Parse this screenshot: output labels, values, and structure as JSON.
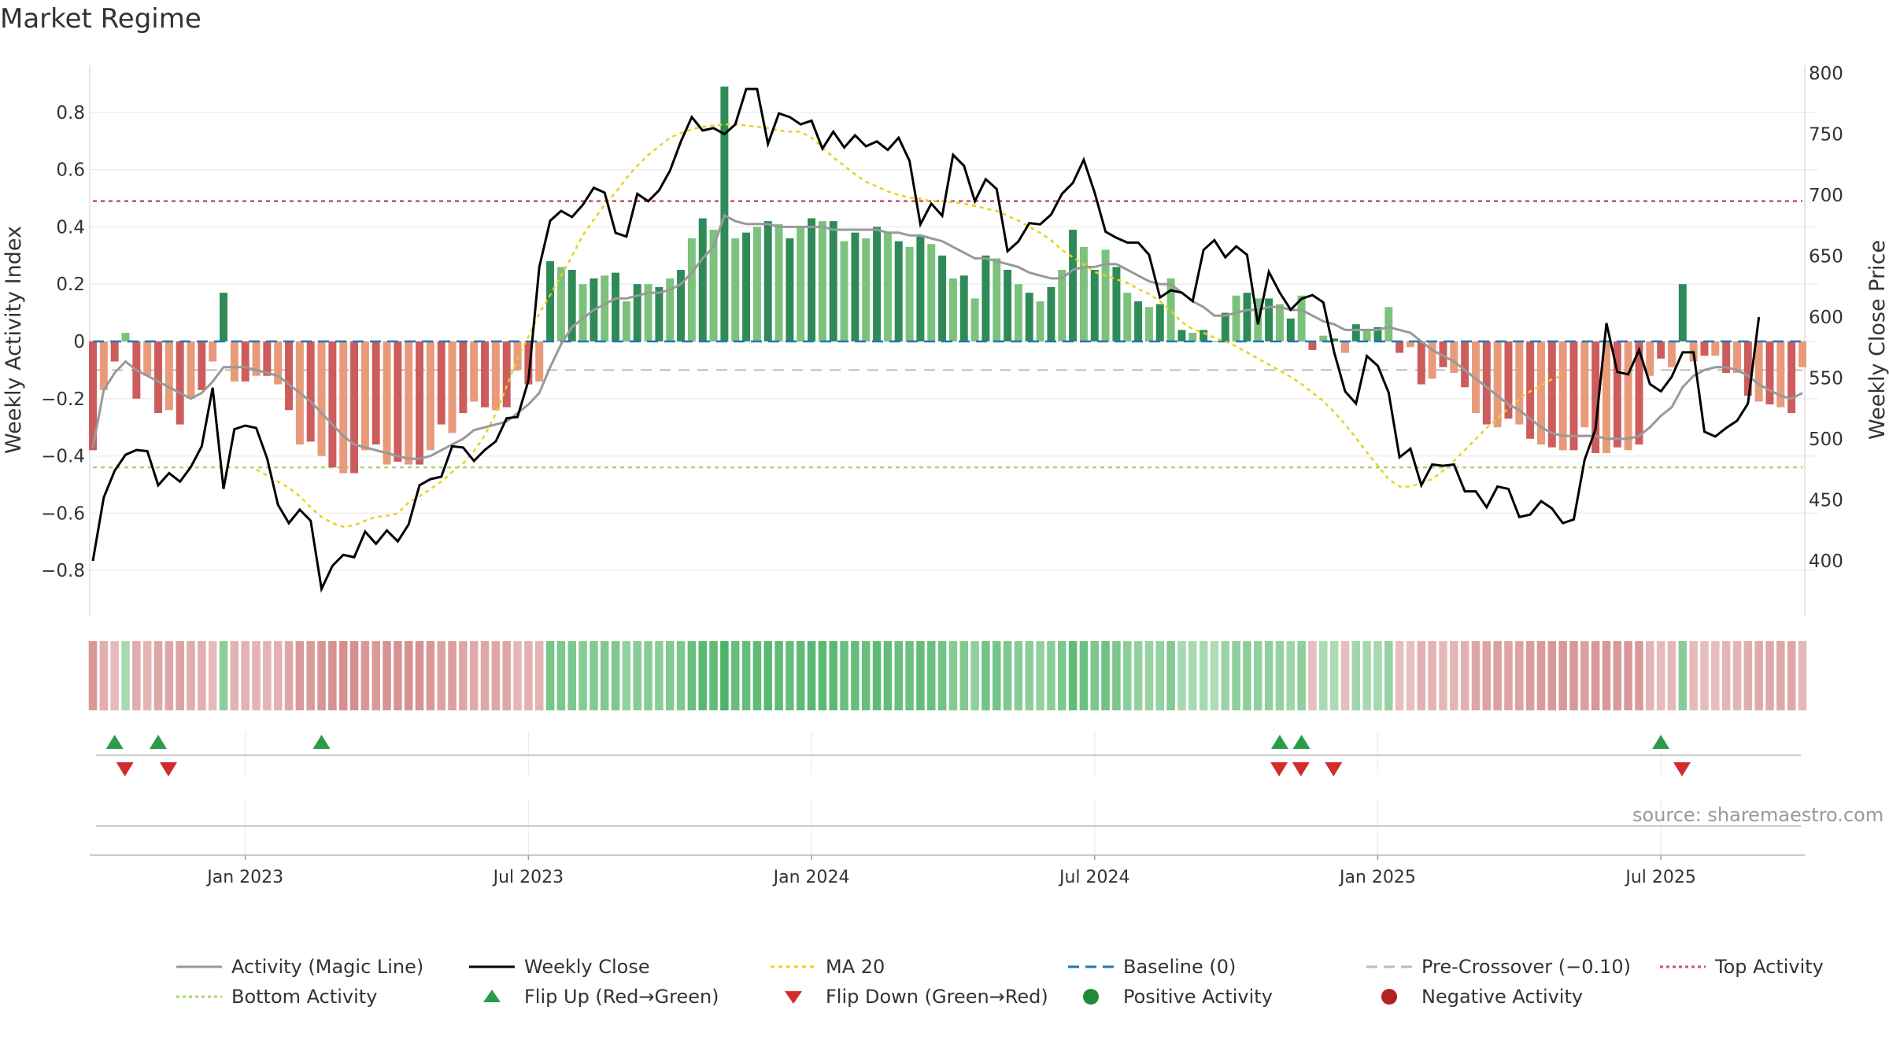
{
  "title": "Market Regime",
  "source": "source: sharemaestro.com",
  "legend": [
    {
      "label": "Activity (Magic Line)",
      "kind": "line",
      "color": "#999999",
      "dash": ""
    },
    {
      "label": "Weekly Close",
      "kind": "line",
      "color": "#000000",
      "dash": ""
    },
    {
      "label": "MA 20",
      "kind": "line",
      "color": "#e8d31a",
      "dash": "5,5"
    },
    {
      "label": "Baseline (0)",
      "kind": "line",
      "color": "#1f77b4",
      "dash": "14,8"
    },
    {
      "label": "Pre-Crossover (−0.10)",
      "kind": "line",
      "color": "#bbbbbb",
      "dash": "14,8"
    },
    {
      "label": "Top Activity",
      "kind": "line",
      "color": "#c8526a",
      "dash": "4,4"
    },
    {
      "label": "Bottom Activity",
      "kind": "line",
      "color": "#a5d86e",
      "dash": "4,4"
    },
    {
      "label": "Flip Up (Red→Green)",
      "kind": "tri-up",
      "color": "#2a9d4a"
    },
    {
      "label": "Flip Down (Green→Red)",
      "kind": "tri-down",
      "color": "#d22b2b"
    },
    {
      "label": "Positive Activity",
      "kind": "dot",
      "color": "#1e8a3a"
    },
    {
      "label": "Negative Activity",
      "kind": "dot",
      "color": "#b22222"
    }
  ],
  "chart_data": {
    "type": "bar",
    "title": "Market Regime",
    "ylabel_left": "Weekly Activity Index",
    "ylabel_right": "Weekly Close Price",
    "ylim_left": [
      -0.96,
      0.96
    ],
    "ylim_right": [
      350,
      800
    ],
    "yticks_left": [
      -0.8,
      -0.6,
      -0.4,
      -0.2,
      0,
      0.2,
      0.4,
      0.6,
      0.8
    ],
    "yticks_right": [
      400,
      450,
      500,
      550,
      600,
      650,
      700,
      750,
      800
    ],
    "xticks": [
      {
        "label": "Jan 2023",
        "week": 14
      },
      {
        "label": "Jul 2023",
        "week": 40
      },
      {
        "label": "Jan 2024",
        "week": 66
      },
      {
        "label": "Jul 2024",
        "week": 92
      },
      {
        "label": "Jan 2025",
        "week": 118
      },
      {
        "label": "Jul 2025",
        "week": 144
      }
    ],
    "reference_lines": {
      "baseline": 0,
      "pre_crossover": -0.1,
      "top_activity": 0.49,
      "bottom_activity": -0.44
    },
    "activity_index": [
      -0.38,
      -0.17,
      -0.07,
      0.03,
      -0.2,
      -0.12,
      -0.25,
      -0.24,
      -0.29,
      -0.2,
      -0.17,
      -0.07,
      0.17,
      -0.14,
      -0.14,
      -0.12,
      -0.12,
      -0.15,
      -0.24,
      -0.36,
      -0.35,
      -0.4,
      -0.44,
      -0.46,
      -0.46,
      -0.38,
      -0.36,
      -0.43,
      -0.42,
      -0.43,
      -0.43,
      -0.38,
      -0.29,
      -0.32,
      -0.25,
      -0.21,
      -0.23,
      -0.24,
      -0.23,
      -0.1,
      -0.15,
      -0.14,
      0.28,
      0.26,
      0.25,
      0.2,
      0.22,
      0.23,
      0.24,
      0.14,
      0.2,
      0.2,
      0.19,
      0.22,
      0.25,
      0.36,
      0.43,
      0.39,
      0.89,
      0.36,
      0.38,
      0.4,
      0.42,
      0.41,
      0.36,
      0.4,
      0.43,
      0.42,
      0.42,
      0.35,
      0.38,
      0.36,
      0.4,
      0.38,
      0.35,
      0.33,
      0.37,
      0.34,
      0.3,
      0.22,
      0.23,
      0.15,
      0.3,
      0.29,
      0.25,
      0.2,
      0.17,
      0.14,
      0.19,
      0.25,
      0.39,
      0.33,
      0.25,
      0.32,
      0.26,
      0.17,
      0.14,
      0.12,
      0.13,
      0.22,
      0.04,
      0.03,
      0.04,
      0.0,
      0.1,
      0.16,
      0.17,
      0.15,
      0.15,
      0.13,
      0.08,
      0.16,
      -0.03,
      0.02,
      0.01,
      -0.04,
      0.06,
      0.04,
      0.05,
      0.12,
      -0.04,
      -0.02,
      -0.15,
      -0.13,
      -0.09,
      -0.11,
      -0.16,
      -0.25,
      -0.29,
      -0.3,
      -0.27,
      -0.29,
      -0.34,
      -0.36,
      -0.37,
      -0.38,
      -0.38,
      -0.3,
      -0.39,
      -0.39,
      -0.37,
      -0.38,
      -0.36,
      -0.12,
      -0.06,
      -0.09,
      0.2,
      -0.07,
      -0.05,
      -0.05,
      -0.11,
      -0.11,
      -0.19,
      -0.21,
      -0.22,
      -0.23,
      -0.25,
      -0.09
    ],
    "magic_line": [
      -0.37,
      -0.17,
      -0.11,
      -0.07,
      -0.1,
      -0.12,
      -0.14,
      -0.16,
      -0.18,
      -0.2,
      -0.18,
      -0.14,
      -0.09,
      -0.09,
      -0.09,
      -0.1,
      -0.11,
      -0.12,
      -0.15,
      -0.18,
      -0.21,
      -0.25,
      -0.29,
      -0.33,
      -0.36,
      -0.37,
      -0.38,
      -0.39,
      -0.4,
      -0.41,
      -0.41,
      -0.4,
      -0.38,
      -0.36,
      -0.34,
      -0.31,
      -0.3,
      -0.29,
      -0.28,
      -0.25,
      -0.22,
      -0.18,
      -0.09,
      -0.01,
      0.05,
      0.08,
      0.11,
      0.13,
      0.15,
      0.15,
      0.16,
      0.17,
      0.17,
      0.18,
      0.2,
      0.24,
      0.29,
      0.33,
      0.44,
      0.42,
      0.41,
      0.41,
      0.41,
      0.4,
      0.4,
      0.4,
      0.4,
      0.4,
      0.39,
      0.39,
      0.39,
      0.39,
      0.39,
      0.38,
      0.38,
      0.37,
      0.37,
      0.36,
      0.35,
      0.33,
      0.31,
      0.29,
      0.29,
      0.28,
      0.27,
      0.26,
      0.24,
      0.23,
      0.22,
      0.22,
      0.25,
      0.26,
      0.26,
      0.27,
      0.27,
      0.25,
      0.23,
      0.21,
      0.2,
      0.2,
      0.17,
      0.14,
      0.12,
      0.09,
      0.09,
      0.1,
      0.11,
      0.11,
      0.12,
      0.12,
      0.11,
      0.11,
      0.09,
      0.07,
      0.06,
      0.04,
      0.04,
      0.04,
      0.04,
      0.05,
      0.04,
      0.03,
      0.0,
      -0.03,
      -0.05,
      -0.07,
      -0.1,
      -0.13,
      -0.16,
      -0.19,
      -0.22,
      -0.24,
      -0.27,
      -0.3,
      -0.32,
      -0.33,
      -0.33,
      -0.33,
      -0.33,
      -0.34,
      -0.34,
      -0.34,
      -0.33,
      -0.3,
      -0.26,
      -0.23,
      -0.16,
      -0.12,
      -0.1,
      -0.09,
      -0.09,
      -0.1,
      -0.12,
      -0.15,
      -0.17,
      -0.19,
      -0.2,
      -0.18
    ],
    "weekly_close": [
      400,
      452,
      474,
      487,
      491,
      490,
      462,
      472,
      465,
      477,
      494,
      542,
      459,
      508,
      511,
      509,
      484,
      446,
      431,
      442,
      433,
      377,
      396,
      405,
      403,
      424,
      414,
      425,
      416,
      430,
      462,
      467,
      469,
      494,
      493,
      482,
      491,
      498,
      517,
      518,
      548,
      641,
      679,
      687,
      682,
      692,
      706,
      702,
      669,
      666,
      701,
      695,
      704,
      720,
      744,
      764,
      753,
      755,
      750,
      758,
      787,
      787,
      742,
      767,
      764,
      758,
      761,
      738,
      752,
      739,
      749,
      740,
      744,
      737,
      747,
      728,
      676,
      693,
      683,
      733,
      724,
      695,
      713,
      705,
      654,
      662,
      677,
      676,
      684,
      701,
      710,
      729,
      702,
      670,
      665,
      661,
      661,
      651,
      616,
      622,
      620,
      613,
      655,
      663,
      649,
      658,
      651,
      594,
      637,
      620,
      606,
      615,
      618,
      612,
      571,
      539,
      529,
      568,
      560,
      538,
      485,
      492,
      462,
      479,
      478,
      479,
      457,
      457,
      444,
      461,
      459,
      436,
      438,
      449,
      443,
      431,
      434,
      483,
      508,
      595,
      555,
      553,
      573,
      545,
      539,
      551,
      571,
      571,
      506,
      502,
      509,
      515,
      529,
      600
    ],
    "ma20": [
      null,
      null,
      null,
      null,
      null,
      null,
      null,
      null,
      null,
      null,
      null,
      null,
      null,
      null,
      null,
      475,
      470,
      465,
      460,
      453,
      444,
      436,
      431,
      428,
      429,
      433,
      436,
      437,
      439,
      448,
      453,
      459,
      465,
      473,
      480,
      490,
      503,
      521,
      543,
      566,
      584,
      603,
      618,
      634,
      650,
      667,
      680,
      692,
      702,
      714,
      724,
      733,
      740,
      747,
      751,
      754,
      756,
      757,
      758,
      758,
      757,
      756,
      755,
      753,
      752,
      752,
      747,
      739,
      731,
      724,
      717,
      711,
      707,
      703,
      700,
      698,
      697,
      695,
      695,
      694,
      693,
      691,
      689,
      687,
      683,
      679,
      674,
      669,
      663,
      655,
      649,
      643,
      637,
      634,
      631,
      628,
      623,
      619,
      613,
      605,
      596,
      590,
      587,
      583,
      580,
      576,
      571,
      566,
      561,
      556,
      551,
      545,
      538,
      531,
      522,
      512,
      501,
      489,
      478,
      467,
      461,
      461,
      464,
      467,
      474,
      482,
      491,
      500,
      509,
      517,
      525,
      533,
      539,
      544,
      549,
      552
    ],
    "flip_up_weeks": [
      2,
      6,
      21,
      109,
      111,
      144
    ],
    "flip_down_weeks": [
      2,
      6,
      108,
      110,
      113,
      145
    ]
  }
}
